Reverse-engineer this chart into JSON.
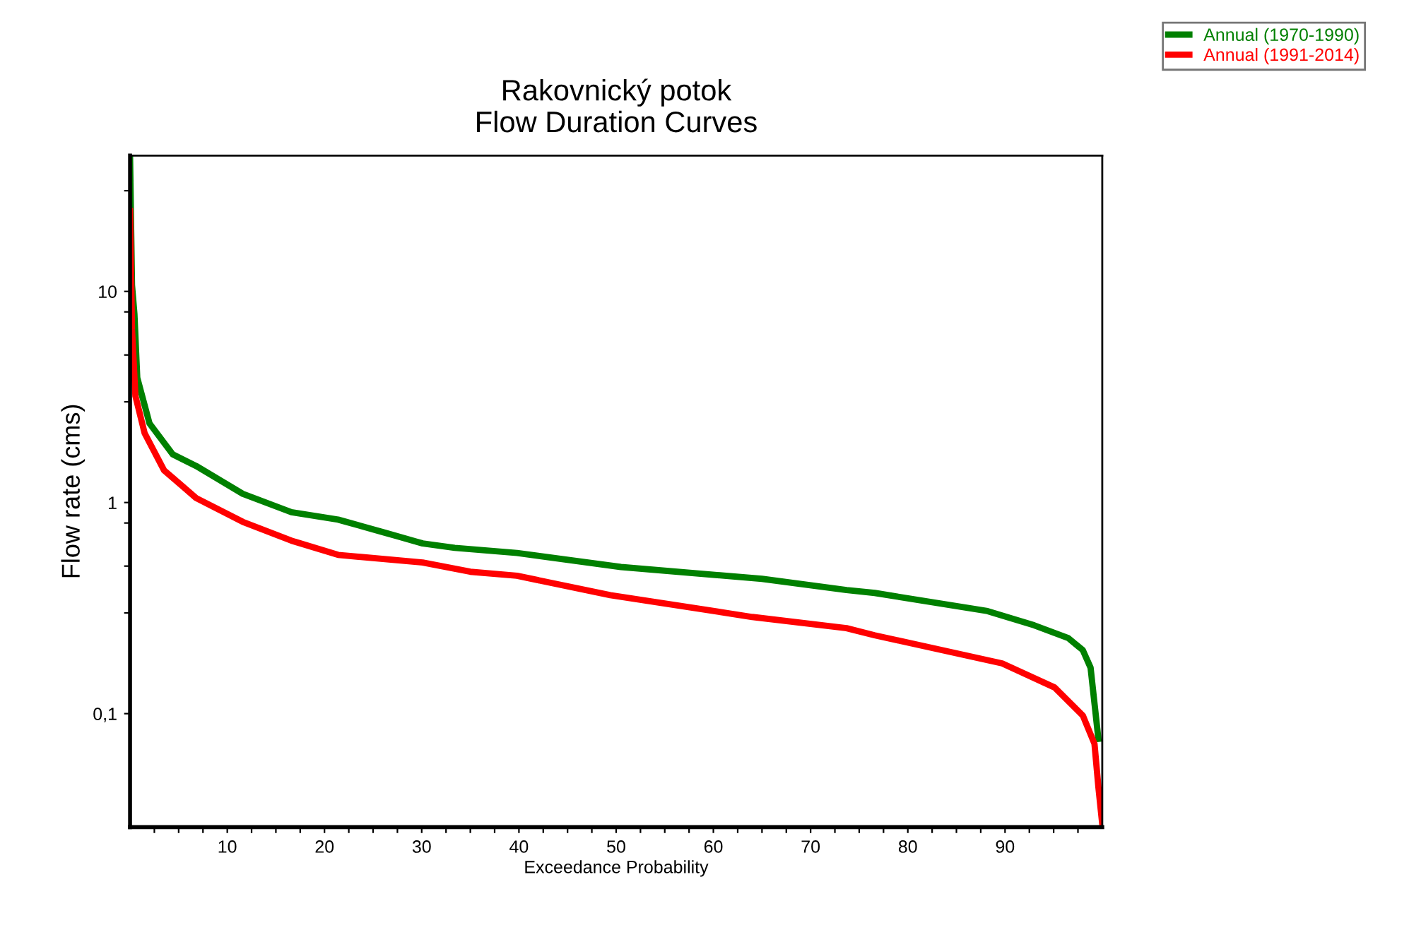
{
  "chart_data": {
    "type": "line",
    "title": "Rakovnický potok\nFlow Duration Curves",
    "xlabel": "Exceedance Probability",
    "ylabel": "Flow rate (cms)",
    "log": "y",
    "xlim": [
      0,
      100
    ],
    "ylim": [
      0.029,
      44
    ],
    "xticks": [
      {
        "value": 2.5,
        "label": null
      },
      {
        "value": 5,
        "label": null
      },
      {
        "value": 7.5,
        "label": null
      },
      10,
      {
        "value": 12.5,
        "label": null
      },
      {
        "value": 15,
        "label": null
      },
      {
        "value": 17.5,
        "label": null
      },
      20,
      {
        "value": 22.5,
        "label": null
      },
      {
        "value": 25,
        "label": null
      },
      {
        "value": 27.5,
        "label": null
      },
      30,
      {
        "value": 32.5,
        "label": null
      },
      {
        "value": 35,
        "label": null
      },
      {
        "value": 37.5,
        "label": null
      },
      40,
      {
        "value": 42.5,
        "label": null
      },
      {
        "value": 45,
        "label": null
      },
      {
        "value": 47.5,
        "label": null
      },
      50,
      {
        "value": 52.5,
        "label": null
      },
      {
        "value": 55,
        "label": null
      },
      {
        "value": 57.5,
        "label": null
      },
      60,
      {
        "value": 62.5,
        "label": null
      },
      {
        "value": 65,
        "label": null
      },
      {
        "value": 67.5,
        "label": null
      },
      70,
      {
        "value": 72.5,
        "label": null
      },
      {
        "value": 75,
        "label": null
      },
      {
        "value": 77.5,
        "label": null
      },
      80,
      {
        "value": 82.5,
        "label": null
      },
      {
        "value": 85,
        "label": null
      },
      {
        "value": 87.5,
        "label": null
      },
      90,
      {
        "value": 92.5,
        "label": null
      },
      {
        "value": 95,
        "label": null
      },
      {
        "value": 97.5,
        "label": null
      }
    ],
    "yticks": [
      {
        "value": 0.1,
        "label": "0,1"
      },
      {
        "value": 0.3,
        "label": null
      },
      {
        "value": 0.5,
        "label": null
      },
      {
        "value": 0.8,
        "label": null
      },
      1,
      {
        "value": 3,
        "label": null
      },
      {
        "value": 5,
        "label": null
      },
      {
        "value": 8,
        "label": null
      },
      10,
      {
        "value": 30,
        "label": null
      }
    ],
    "grid": false,
    "legend": "top right",
    "marker": "none",
    "line_style": "solid",
    "series": [
      {
        "name": "Annual (1970-1990)",
        "color": "#008000",
        "x": [
          0,
          0.2,
          0.45,
          0.74,
          2.0,
          4.4,
          6.8,
          11.6,
          16.6,
          21.4,
          26.2,
          30.1,
          33.4,
          39.8,
          50.5,
          65,
          73.7,
          76.6,
          88.2,
          93,
          96.5,
          98,
          98.8,
          99.6
        ],
        "values": [
          43,
          10.7,
          7.8,
          3.9,
          2.37,
          1.69,
          1.49,
          1.1,
          0.9,
          0.83,
          0.72,
          0.64,
          0.61,
          0.577,
          0.495,
          0.435,
          0.385,
          0.373,
          0.306,
          0.262,
          0.228,
          0.2,
          0.165,
          0.076
        ]
      },
      {
        "name": "Annual (1991-2014)",
        "color": "#ff0000",
        "x": [
          0,
          0.2,
          0.55,
          1.5,
          3.5,
          6.8,
          11.6,
          16.6,
          21.4,
          30.1,
          35,
          39.8,
          49.4,
          64,
          73.7,
          76.6,
          89.7,
          95.1,
          98,
          99.2,
          99.6,
          100
        ],
        "values": [
          24,
          6.6,
          3.2,
          2.13,
          1.42,
          1.05,
          0.81,
          0.66,
          0.565,
          0.52,
          0.47,
          0.45,
          0.364,
          0.287,
          0.254,
          0.235,
          0.173,
          0.133,
          0.098,
          0.072,
          0.045,
          0.03
        ]
      }
    ]
  }
}
